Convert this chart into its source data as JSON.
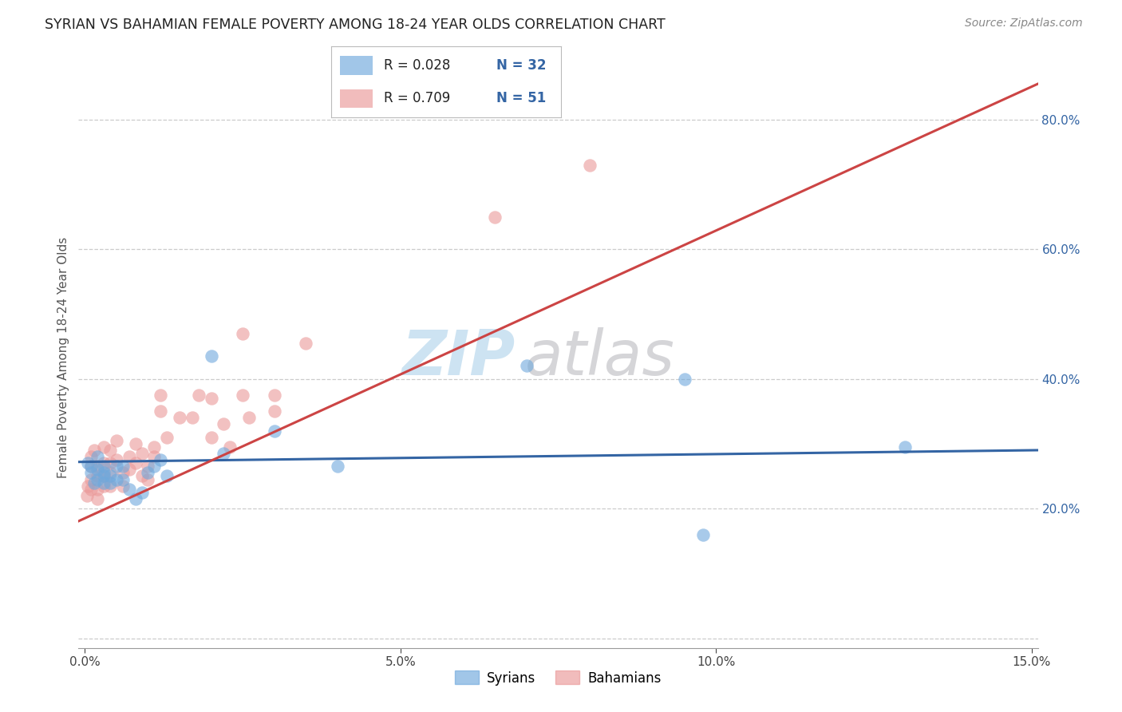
{
  "title": "SYRIAN VS BAHAMIAN FEMALE POVERTY AMONG 18-24 YEAR OLDS CORRELATION CHART",
  "source": "Source: ZipAtlas.com",
  "ylabel": "Female Poverty Among 18-24 Year Olds",
  "xlim": [
    -0.001,
    0.151
  ],
  "ylim": [
    -0.015,
    0.88
  ],
  "ytick_vals": [
    0.2,
    0.4,
    0.6,
    0.8
  ],
  "xtick_vals": [
    0.0,
    0.05,
    0.1,
    0.15
  ],
  "syrians_color": "#6fa8dc",
  "bahamians_color": "#ea9999",
  "syrians_line_color": "#3465a4",
  "bahamians_line_color": "#cc4444",
  "legend_R_syrian": "R = 0.028",
  "legend_N_syrian": "N = 32",
  "legend_R_bahamian": "R = 0.709",
  "legend_N_bahamian": "N = 51",
  "watermark_zip": "ZIP",
  "watermark_atlas": "atlas",
  "grid_color": "#cccccc",
  "bg_color": "#ffffff",
  "syrians_x": [
    0.0005,
    0.001,
    0.001,
    0.0015,
    0.002,
    0.002,
    0.002,
    0.003,
    0.003,
    0.003,
    0.003,
    0.004,
    0.004,
    0.005,
    0.005,
    0.006,
    0.006,
    0.007,
    0.008,
    0.009,
    0.01,
    0.011,
    0.012,
    0.013,
    0.02,
    0.022,
    0.03,
    0.04,
    0.07,
    0.095,
    0.098,
    0.13
  ],
  "syrians_y": [
    0.27,
    0.255,
    0.265,
    0.24,
    0.26,
    0.245,
    0.28,
    0.25,
    0.265,
    0.24,
    0.255,
    0.25,
    0.24,
    0.245,
    0.265,
    0.265,
    0.245,
    0.23,
    0.215,
    0.225,
    0.255,
    0.265,
    0.275,
    0.25,
    0.435,
    0.285,
    0.32,
    0.265,
    0.42,
    0.4,
    0.16,
    0.295
  ],
  "bahamians_x": [
    0.0003,
    0.0005,
    0.001,
    0.001,
    0.001,
    0.001,
    0.0015,
    0.002,
    0.002,
    0.002,
    0.002,
    0.003,
    0.003,
    0.003,
    0.003,
    0.004,
    0.004,
    0.004,
    0.004,
    0.005,
    0.005,
    0.006,
    0.006,
    0.007,
    0.007,
    0.008,
    0.008,
    0.009,
    0.009,
    0.01,
    0.01,
    0.011,
    0.011,
    0.012,
    0.012,
    0.013,
    0.015,
    0.017,
    0.018,
    0.02,
    0.02,
    0.022,
    0.023,
    0.025,
    0.025,
    0.026,
    0.03,
    0.03,
    0.035,
    0.065,
    0.08
  ],
  "bahamians_y": [
    0.22,
    0.235,
    0.28,
    0.265,
    0.245,
    0.23,
    0.29,
    0.265,
    0.25,
    0.23,
    0.215,
    0.295,
    0.27,
    0.25,
    0.235,
    0.29,
    0.27,
    0.255,
    0.235,
    0.305,
    0.275,
    0.255,
    0.235,
    0.28,
    0.26,
    0.3,
    0.27,
    0.25,
    0.285,
    0.265,
    0.245,
    0.28,
    0.295,
    0.375,
    0.35,
    0.31,
    0.34,
    0.34,
    0.375,
    0.31,
    0.37,
    0.33,
    0.295,
    0.47,
    0.375,
    0.34,
    0.35,
    0.375,
    0.455,
    0.65,
    0.73
  ],
  "bahamian_line_x0": 0.0,
  "bahamian_line_y0": 0.185,
  "bahamian_line_x1": 0.151,
  "bahamian_line_y1": 0.855,
  "syrian_line_x0": 0.0,
  "syrian_line_y0": 0.272,
  "syrian_line_x1": 0.151,
  "syrian_line_y1": 0.29
}
